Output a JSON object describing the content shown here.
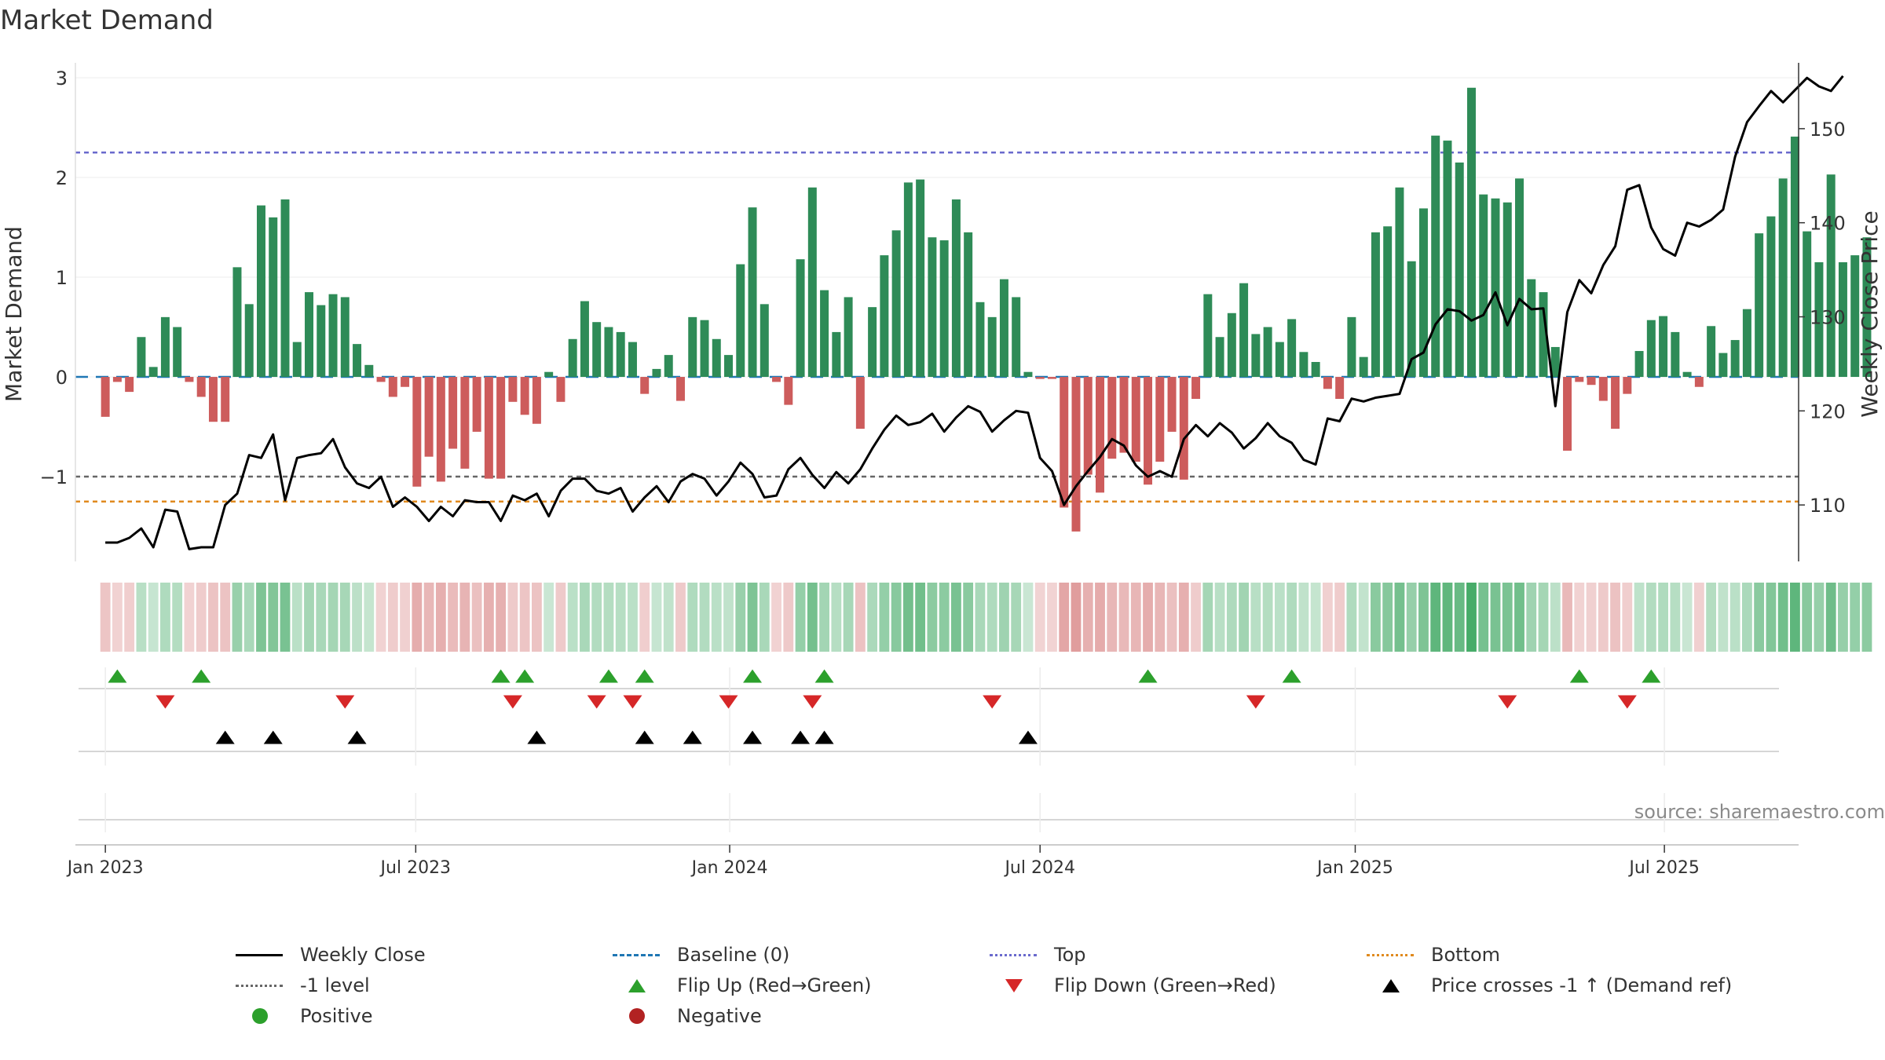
{
  "title": "Market Demand",
  "source_note": "source: sharemaestro.com",
  "colors": {
    "positive_bar": "#2e8b57",
    "negative_bar": "#cd5c5c",
    "price_line": "#000000",
    "baseline": "#1f77b4",
    "top": "#6a6acd",
    "minus1": "#666666",
    "bottom": "#e08a1e",
    "flip_up": "#2ca02c",
    "flip_down": "#d62728",
    "cross": "#000000",
    "positive_dot": "#2ca02c",
    "negative_dot": "#b22222"
  },
  "legend": [
    {
      "key": "weekly_close",
      "label": "Weekly Close",
      "symbol": "line-solid",
      "color": "#000000"
    },
    {
      "key": "baseline",
      "label": "Baseline (0)",
      "symbol": "line-dash",
      "color": "#1f77b4"
    },
    {
      "key": "top",
      "label": "Top",
      "symbol": "line-dot",
      "color": "#6a6acd"
    },
    {
      "key": "bottom",
      "label": "Bottom",
      "symbol": "line-dot",
      "color": "#e08a1e"
    },
    {
      "key": "minus1",
      "label": "-1 level",
      "symbol": "line-dot",
      "color": "#666666"
    },
    {
      "key": "flip_up",
      "label": "Flip Up (Red→Green)",
      "symbol": "tri-up",
      "color": "#2ca02c"
    },
    {
      "key": "flip_down",
      "label": "Flip Down (Green→Red)",
      "symbol": "tri-down",
      "color": "#d62728"
    },
    {
      "key": "cross",
      "label": "Price crosses -1 ↑ (Demand ref)",
      "symbol": "tri-up",
      "color": "#000000"
    },
    {
      "key": "positive",
      "label": "Positive",
      "symbol": "dot",
      "color": "#2ca02c"
    },
    {
      "key": "negative",
      "label": "Negative",
      "symbol": "dot",
      "color": "#b22222"
    }
  ],
  "chart_data": {
    "type": "bar",
    "title": "Market Demand",
    "ylabel": "Market Demand",
    "y2label": "Weekly Close Price",
    "ylim": [
      -1.85,
      3.15
    ],
    "y2lim": [
      104,
      157
    ],
    "yticks": [
      -1,
      0,
      1,
      2,
      3
    ],
    "ytick_labels": [
      "−1",
      "0",
      "1",
      "2",
      "3"
    ],
    "y2ticks": [
      110,
      120,
      130,
      140,
      150
    ],
    "xlim": [
      -2.5,
      141.3
    ],
    "xticks": [
      {
        "week": 0,
        "label": "Jan 2023"
      },
      {
        "week": 25.9,
        "label": "Jul 2023"
      },
      {
        "week": 52.1,
        "label": "Jan 2024"
      },
      {
        "week": 78,
        "label": "Jul 2024"
      },
      {
        "week": 104.3,
        "label": "Jan 2025"
      },
      {
        "week": 130.1,
        "label": "Jul 2025"
      }
    ],
    "reference_lines": {
      "baseline": 0,
      "top": 2.25,
      "minus1": -1,
      "bottom": -1.25
    },
    "series": [
      {
        "name": "Market Demand",
        "axis": "left",
        "kind": "bar",
        "values": [
          -0.4,
          -0.05,
          -0.15,
          0.4,
          0.1,
          0.6,
          0.5,
          -0.05,
          -0.2,
          -0.45,
          -0.45,
          1.1,
          0.73,
          1.72,
          1.6,
          1.78,
          0.35,
          0.85,
          0.72,
          0.83,
          0.8,
          0.33,
          0.12,
          -0.05,
          -0.2,
          -0.1,
          -1.1,
          -0.8,
          -1.05,
          -0.72,
          -0.92,
          -0.55,
          -1.02,
          -1.02,
          -0.25,
          -0.38,
          -0.47,
          0.05,
          -0.25,
          0.38,
          0.76,
          0.55,
          0.5,
          0.45,
          0.35,
          -0.17,
          0.08,
          0.22,
          -0.24,
          0.6,
          0.57,
          0.38,
          0.22,
          1.13,
          1.7,
          0.73,
          -0.05,
          -0.28,
          1.18,
          1.9,
          0.87,
          0.45,
          0.8,
          -0.52,
          0.7,
          1.22,
          1.47,
          1.95,
          1.98,
          1.4,
          1.37,
          1.78,
          1.45,
          0.75,
          0.6,
          0.98,
          0.8,
          0.05,
          -0.02,
          -0.02,
          -1.31,
          -1.55,
          -0.98,
          -1.16,
          -0.82,
          -0.76,
          -0.85,
          -1.08,
          -0.85,
          -0.55,
          -1.03,
          -0.22,
          0.83,
          0.4,
          0.64,
          0.94,
          0.43,
          0.5,
          0.35,
          0.58,
          0.25,
          0.15,
          -0.12,
          -0.22,
          0.6,
          0.2,
          1.45,
          1.51,
          1.9,
          1.16,
          1.69,
          2.42,
          2.37,
          2.15,
          2.9,
          1.83,
          1.79,
          1.75,
          1.99,
          0.98,
          0.85,
          0.3,
          -0.74,
          -0.05,
          -0.08,
          -0.24,
          -0.52,
          -0.17,
          0.26,
          0.57,
          0.61,
          0.45,
          0.05,
          -0.1,
          0.51,
          0.24,
          0.37,
          0.68,
          1.44,
          1.61,
          1.99,
          2.41,
          1.46,
          1.15,
          2.03,
          1.15,
          1.22,
          1.4
        ]
      },
      {
        "name": "Weekly Close",
        "axis": "right",
        "kind": "line",
        "values": [
          106,
          106,
          106.5,
          107.5,
          105.5,
          109.5,
          109.3,
          105.3,
          105.5,
          105.5,
          110,
          111.2,
          115.3,
          115,
          117.5,
          110.5,
          115,
          115.3,
          115.5,
          117,
          114,
          112.3,
          111.8,
          113,
          109.8,
          110.8,
          109.8,
          108.3,
          109.8,
          108.8,
          110.5,
          110.3,
          110.3,
          108.3,
          111,
          110.5,
          111.2,
          108.8,
          111.5,
          112.8,
          112.8,
          111.5,
          111.2,
          111.8,
          109.3,
          110.8,
          112,
          110.3,
          112.5,
          113.3,
          112.8,
          111,
          112.5,
          114.5,
          113.3,
          110.8,
          111,
          113.8,
          115,
          113.2,
          111.8,
          113.5,
          112.3,
          113.8,
          116,
          118,
          119.5,
          118.5,
          118.8,
          119.7,
          117.8,
          119.3,
          120.5,
          119.9,
          117.8,
          119,
          120,
          119.8,
          115,
          113.6,
          110,
          112,
          113.6,
          115.1,
          117,
          116.3,
          114.2,
          113,
          113.6,
          113,
          117,
          118.5,
          117.3,
          118.7,
          117.7,
          116,
          117.1,
          118.7,
          117.3,
          116.6,
          114.8,
          114.3,
          119.2,
          118.9,
          121.3,
          121,
          121.4,
          121.6,
          121.8,
          125.5,
          126.2,
          129.2,
          130.8,
          130.6,
          129.6,
          130.2,
          132.6,
          129.1,
          131.9,
          130.8,
          130.9,
          120.5,
          130.5,
          133.9,
          132.5,
          135.5,
          137.5,
          143.5,
          144,
          139.5,
          137.2,
          136.5,
          140,
          139.6,
          140.3,
          141.4,
          147,
          150.7,
          152.4,
          154,
          152.8,
          154.1,
          155.4,
          154.5,
          154,
          155.6
        ]
      }
    ],
    "flip_up_weeks": [
      1,
      8,
      33,
      35,
      42,
      45,
      54,
      60,
      87,
      99,
      123,
      129
    ],
    "flip_down_weeks": [
      5,
      20,
      34,
      41,
      44,
      52,
      59,
      74,
      96,
      117,
      127
    ],
    "price_cross_weeks": [
      10,
      14,
      21,
      36,
      45,
      49,
      54,
      58,
      60,
      77
    ],
    "heat_strip": "one cell per week, green = positive demand, red = negative demand, intensity by magnitude"
  }
}
